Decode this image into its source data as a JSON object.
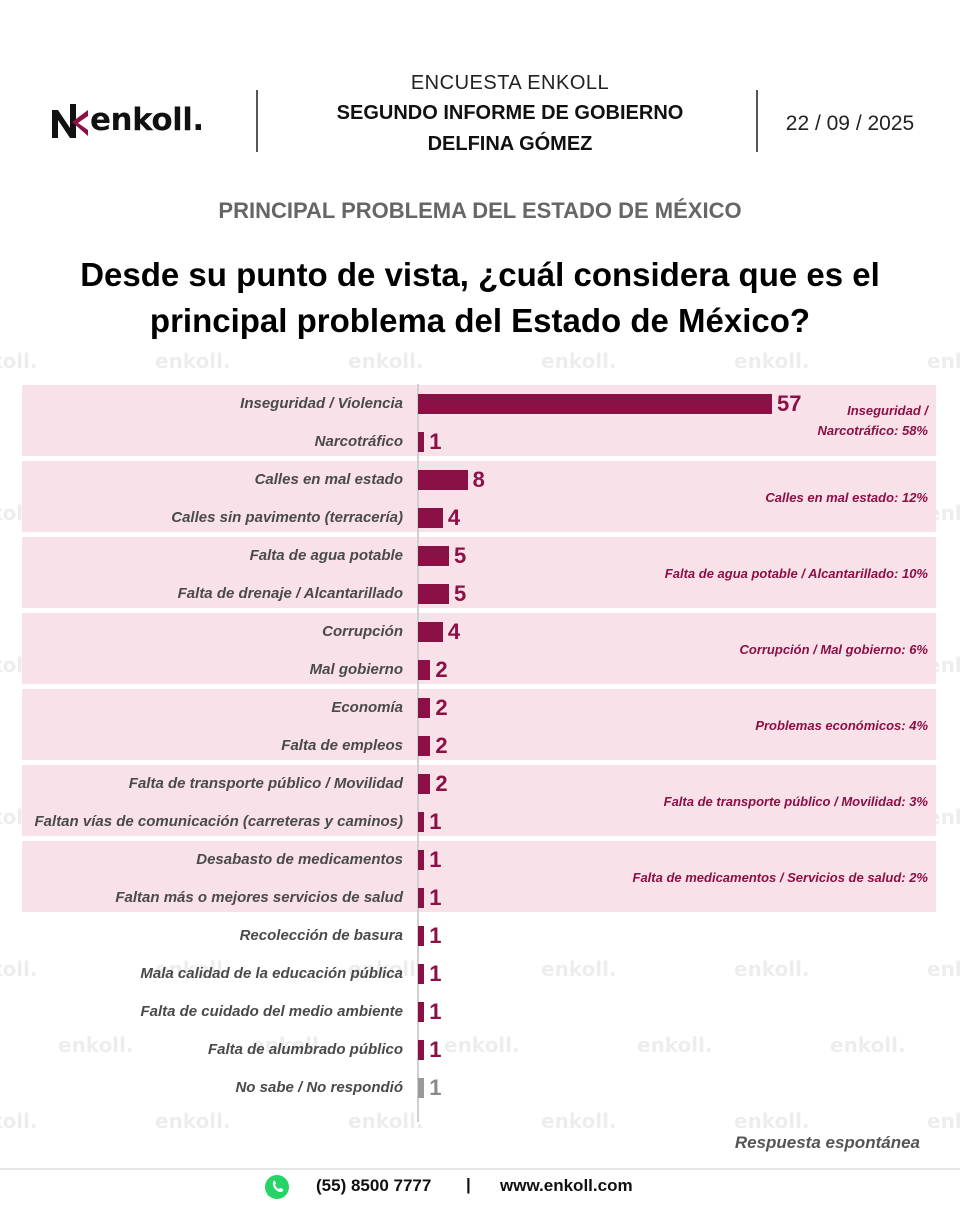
{
  "header": {
    "brand": "enkoll.",
    "survey_name": "ENCUESTA ENKOLL",
    "report_line1": "SEGUNDO INFORME DE GOBIERNO",
    "report_line2": "DELFINA GÓMEZ",
    "date": "22 / 09 / 2025"
  },
  "section_title": "PRINCIPAL PROBLEMA DEL ESTADO DE MÉXICO",
  "question_line1": "Desde su punto de vista, ¿cuál considera que es el",
  "question_line2": "principal problema del Estado de México?",
  "watermark_text": "enkoll.",
  "colors": {
    "bar": "#8b1045",
    "no_response_bar": "#9a9a9a",
    "band": "#f8e1e9"
  },
  "chart_data": {
    "type": "bar",
    "orientation": "horizontal",
    "categories": [
      "Inseguridad / Violencia",
      "Narcotráfico",
      "Calles en mal estado",
      "Calles sin pavimento (terracería)",
      "Falta de agua potable",
      "Falta de drenaje / Alcantarillado",
      "Corrupción",
      "Mal gobierno",
      "Economía",
      "Falta de empleos",
      "Falta de transporte público / Movilidad",
      "Faltan vías de comunicación (carreteras y caminos)",
      "Desabasto de medicamentos",
      "Faltan más o mejores servicios de salud",
      "Recolección de basura",
      "Mala calidad de la educación pública",
      "Falta de cuidado del medio ambiente",
      "Falta de alumbrado público",
      "No sabe / No respondió"
    ],
    "values": [
      57,
      1,
      8,
      4,
      5,
      5,
      4,
      2,
      2,
      2,
      2,
      1,
      1,
      1,
      1,
      1,
      1,
      1,
      1
    ],
    "xlim": [
      0,
      57
    ],
    "groups": [
      {
        "label": "Inseguridad / Narcotráfico: 58%",
        "line1": "Inseguridad /",
        "line2": "Narcotráfico: 58%"
      },
      {
        "label": "Calles en mal estado: 12%"
      },
      {
        "label": "Falta de agua potable / Alcantarillado: 10%"
      },
      {
        "label": "Corrupción / Mal gobierno: 6%"
      },
      {
        "label": "Problemas económicos: 4%"
      },
      {
        "label": "Falta de transporte público / Movilidad: 3%"
      },
      {
        "label": "Falta de medicamentos / Servicios de salud: 2%"
      }
    ],
    "note": "Respuesta espontánea"
  },
  "footer": {
    "phone": "(55) 8500 7777",
    "separator": "|",
    "website": "www.enkoll.com"
  }
}
